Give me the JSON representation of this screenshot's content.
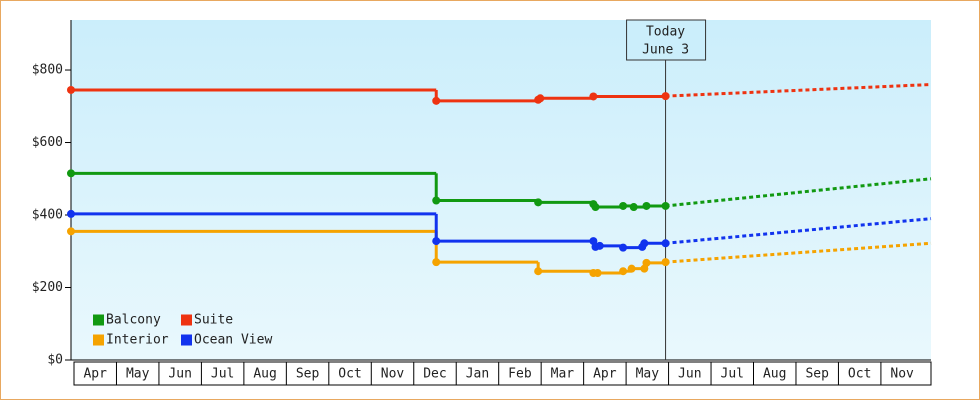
{
  "chart_data": {
    "type": "step-line",
    "categories": [
      "Apr",
      "May",
      "Jun",
      "Jul",
      "Aug",
      "Sep",
      "Oct",
      "Nov",
      "Dec",
      "Jan",
      "Feb",
      "Mar",
      "Apr",
      "May",
      "Jun",
      "Jul",
      "Aug",
      "Sep",
      "Oct",
      "Nov"
    ],
    "xlim": [
      0,
      20.25
    ],
    "ylim": [
      0,
      938
    ],
    "yticks": [
      {
        "value": 0,
        "label": "$0"
      },
      {
        "value": 200,
        "label": "$200"
      },
      {
        "value": 400,
        "label": "$400"
      },
      {
        "value": 600,
        "label": "$600"
      },
      {
        "value": 800,
        "label": "$800"
      }
    ],
    "annotation": {
      "x": 14,
      "lines": [
        "Today",
        "June 3"
      ]
    },
    "series": [
      {
        "name": "Balcony",
        "color": "#119911",
        "x": [
          0,
          8.6,
          11.0,
          12.3,
          12.35,
          13.0,
          13.25,
          13.55,
          14
        ],
        "values": [
          515,
          440,
          435,
          430,
          422,
          425,
          422,
          425,
          425
        ],
        "forecast": {
          "x": [
            14,
            20.25
          ],
          "values": [
            425,
            500
          ]
        }
      },
      {
        "name": "Suite",
        "color": "#ee3311",
        "x": [
          0,
          8.6,
          11.0,
          11.05,
          12.3,
          14
        ],
        "values": [
          745,
          715,
          718,
          722,
          727,
          728
        ],
        "forecast": {
          "x": [
            14,
            20.25
          ],
          "values": [
            728,
            760
          ]
        }
      },
      {
        "name": "Interior",
        "color": "#f5a300",
        "x": [
          0,
          8.6,
          11.0,
          12.3,
          12.4,
          13.0,
          13.2,
          13.5,
          13.55,
          14
        ],
        "values": [
          355,
          270,
          245,
          240,
          240,
          245,
          252,
          252,
          268,
          270
        ],
        "forecast": {
          "x": [
            14,
            20.25
          ],
          "values": [
            270,
            322
          ]
        }
      },
      {
        "name": "Ocean View",
        "color": "#1133ee",
        "x": [
          0,
          8.6,
          12.3,
          12.35,
          12.45,
          13.0,
          13.45,
          13.5,
          14
        ],
        "values": [
          403,
          328,
          328,
          312,
          315,
          310,
          312,
          322,
          322
        ],
        "forecast": {
          "x": [
            14,
            20.25
          ],
          "values": [
            322,
            390
          ]
        }
      }
    ]
  }
}
